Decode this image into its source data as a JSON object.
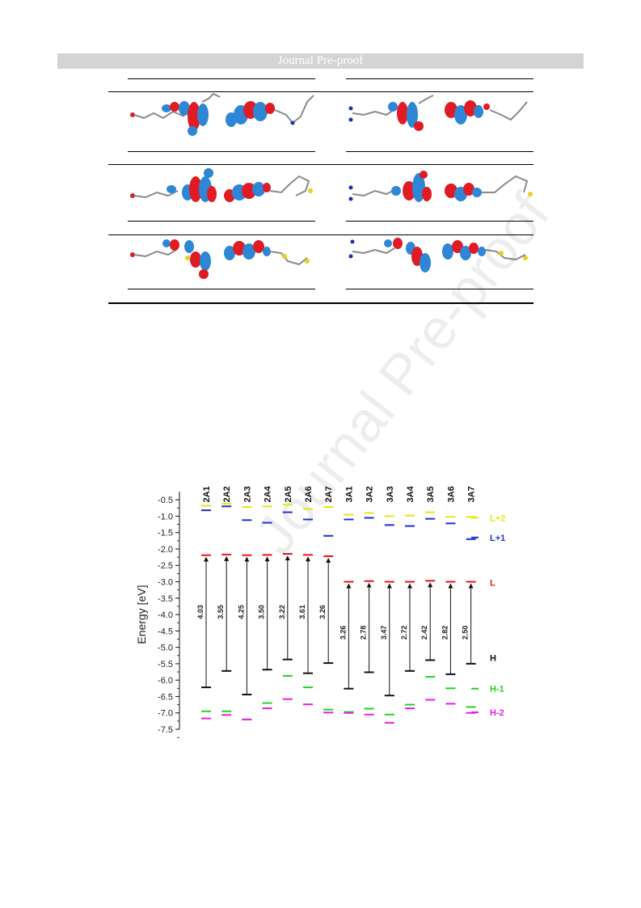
{
  "header": {
    "banner_text": "Journal Pre-proof"
  },
  "watermark": {
    "text": "Journal Pre-proof"
  },
  "orbital_table": {
    "rows": 3,
    "columns": 2,
    "colors": {
      "positive_lobe": "#e01b24",
      "negative_lobe": "#2e86d6",
      "carbon": "#8a8a8a",
      "nitrogen": "#1a2fb5",
      "sulfur": "#e6d21c",
      "oxygen": "#d42020"
    }
  },
  "chart_data": {
    "type": "energy-level-diagram",
    "ylabel": "Energy [eV]",
    "ylim": [
      -7.5,
      -0.25
    ],
    "yticks": [
      -0.5,
      -1.0,
      -1.5,
      -2.0,
      -2.5,
      -3.0,
      -3.5,
      -4.0,
      -4.5,
      -5.0,
      -5.5,
      -6.0,
      -6.5,
      -7.0,
      -7.5
    ],
    "ytick_labels": [
      "-0.5",
      "-1.0",
      "-1.5",
      "-2.0",
      "-2.5",
      "-3.0",
      "-3.5",
      "-4.0",
      "-4.5",
      "-5.0",
      "-5.5",
      "-6.0",
      "-6.5",
      "-7.0",
      "-7.5"
    ],
    "categories": [
      "2A1",
      "2A2",
      "2A3",
      "2A4",
      "2A5",
      "2A6",
      "2A7",
      "3A1",
      "3A2",
      "3A3",
      "3A4",
      "3A5",
      "3A6",
      "3A7"
    ],
    "levels": {
      "L+2": [
        -0.68,
        -0.62,
        -0.72,
        -0.7,
        -0.65,
        -0.78,
        -0.72,
        -0.95,
        -0.9,
        -1.0,
        -0.98,
        -0.88,
        -1.02,
        -1.02
      ],
      "L+1": [
        -0.82,
        -0.7,
        -1.12,
        -1.2,
        -0.88,
        -1.1,
        -1.6,
        -1.1,
        -1.05,
        -1.27,
        -1.3,
        -1.08,
        -1.22,
        -1.7
      ],
      "L": [
        -2.19,
        -2.17,
        -2.19,
        -2.18,
        -2.15,
        -2.18,
        -2.22,
        -3.0,
        -2.98,
        -3.0,
        -3.0,
        -2.97,
        -3.0,
        -3.0
      ],
      "H": [
        -6.22,
        -5.72,
        -6.44,
        -5.68,
        -5.37,
        -5.79,
        -5.48,
        -6.26,
        -5.76,
        -6.47,
        -5.72,
        -5.39,
        -5.82,
        -5.5
      ],
      "H-1": [
        -6.95,
        -6.95,
        -7.2,
        -6.7,
        -5.87,
        -6.22,
        -6.9,
        -6.97,
        -6.87,
        -7.05,
        -6.75,
        -5.9,
        -6.25,
        -6.82
      ],
      "H-2": [
        -7.17,
        -7.06,
        -7.2,
        -6.86,
        -6.58,
        -6.74,
        -6.99,
        -7.0,
        -7.05,
        -7.3,
        -6.86,
        -6.6,
        -6.72,
        -7.0
      ]
    },
    "gaps": [
      4.03,
      3.55,
      4.25,
      3.5,
      3.22,
      3.61,
      3.26,
      3.26,
      2.78,
      3.47,
      2.72,
      2.42,
      2.82,
      2.5
    ],
    "gap_labels": [
      "4.03",
      "3.55",
      "4.25",
      "3.50",
      "3.22",
      "3.61",
      "3.26",
      "3.26",
      "2.78",
      "3.47",
      "2.72",
      "2.42",
      "2.82",
      "2.50"
    ],
    "legend": [
      {
        "name": "L+2",
        "color": "#e6e619",
        "value": -1.05
      },
      {
        "name": "L+1",
        "color": "#1f2fd0",
        "value": -1.65
      },
      {
        "name": "L",
        "color": "#e8141e",
        "value": -3.02
      },
      {
        "name": "H",
        "color": "#111111",
        "value": -5.32
      },
      {
        "name": "H-1",
        "color": "#26d226",
        "value": -6.26
      },
      {
        "name": "H-2",
        "color": "#e61ee6",
        "value": -6.98
      }
    ],
    "legend_placement": "right",
    "grid": false
  }
}
